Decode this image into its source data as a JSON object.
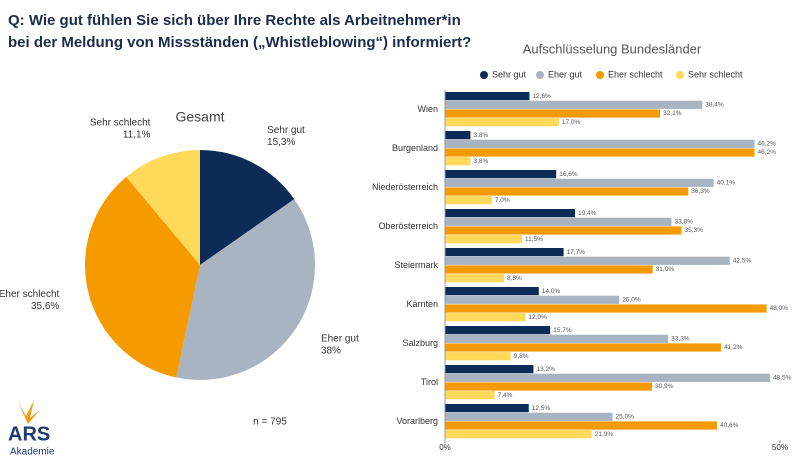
{
  "title": "Q: Wie gut fühlen Sie sich über Ihre Rechte als Arbeitnehmer*in bei der Meldung von Missständen („Whistleblowing“) informiert?",
  "note": "n = 795",
  "logo": {
    "name": "ARS",
    "subtitle": "Akademie"
  },
  "chart_data": [
    {
      "type": "pie",
      "title": "Gesamt",
      "categories": [
        "Sehr gut",
        "Eher gut",
        "Eher schlecht",
        "Sehr schlecht"
      ],
      "values": [
        15.3,
        38,
        35.6,
        11.1
      ],
      "value_labels": [
        "15,3%",
        "38%",
        "35,6%",
        "11,1%"
      ],
      "colors": [
        "#0d2b57",
        "#a9b4c2",
        "#f59b00",
        "#ffd95a"
      ]
    },
    {
      "type": "hbar",
      "title": "Aufschlüsselung Bundesländer",
      "categories": [
        "Wien",
        "Burgenland",
        "Niederösterreich",
        "Oberösterreich",
        "Steiermark",
        "Kärnten",
        "Salzburg",
        "Tirol",
        "Vorarlberg"
      ],
      "series": [
        {
          "name": "Sehr gut",
          "color": "#0d2b57",
          "values": [
            12.6,
            3.8,
            16.6,
            19.4,
            17.7,
            14.0,
            15.7,
            13.2,
            12.5
          ],
          "value_labels": [
            "12,6%",
            "3,8%",
            "16,6%",
            "19,4%",
            "17,7%",
            "14,0%",
            "15,7%",
            "13,2%",
            "12,5%"
          ]
        },
        {
          "name": "Eher gut",
          "color": "#a9b4c2",
          "values": [
            38.4,
            46.2,
            40.1,
            33.8,
            42.5,
            26.0,
            33.3,
            48.5,
            25.0
          ],
          "value_labels": [
            "38,4%",
            "46,2%",
            "40,1%",
            "33,8%",
            "42,5%",
            "26,0%",
            "33,3%",
            "48,5%",
            "25,0%"
          ]
        },
        {
          "name": "Eher schlecht",
          "color": "#f59b00",
          "values": [
            32.1,
            46.2,
            36.3,
            35.3,
            31.0,
            48.0,
            41.2,
            30.9,
            40.6
          ],
          "value_labels": [
            "32,1%",
            "46,2%",
            "36,3%",
            "35,3%",
            "31,0%",
            "48,0%",
            "41,2%",
            "30,9%",
            "40,6%"
          ]
        },
        {
          "name": "Sehr schlecht",
          "color": "#ffd95a",
          "values": [
            17.0,
            3.8,
            7.0,
            11.5,
            8.8,
            12.0,
            9.8,
            7.4,
            21.9
          ],
          "value_labels": [
            "17,0%",
            "3,8%",
            "7,0%",
            "11,5%",
            "8,8%",
            "12,0%",
            "9,8%",
            "7,4%",
            "21,9%"
          ]
        }
      ],
      "xlim": [
        0,
        50
      ],
      "xticks": [
        {
          "value": 0,
          "label": "0%"
        },
        {
          "value": 50,
          "label": "50%"
        }
      ],
      "legend": "top"
    }
  ]
}
